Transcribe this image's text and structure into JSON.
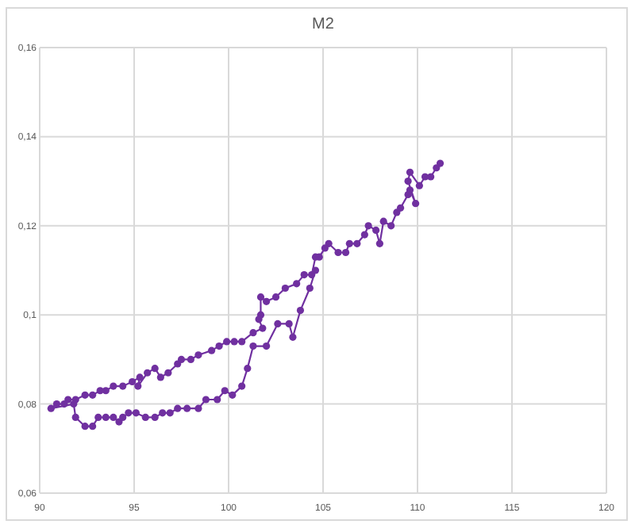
{
  "chart_data": {
    "type": "line",
    "title": "M2",
    "marker": "circle",
    "line_style": "solid",
    "grid": true,
    "xlim": [
      90,
      120
    ],
    "xticks": [
      90,
      95,
      100,
      105,
      110,
      115,
      120
    ],
    "ylim": [
      0.06,
      0.16
    ],
    "yticks": [
      {
        "value": 0.06,
        "label": "0,06"
      },
      {
        "value": 0.08,
        "label": "0,08"
      },
      {
        "value": 0.1,
        "label": "0,1"
      },
      {
        "value": 0.12,
        "label": "0,12"
      },
      {
        "value": 0.14,
        "label": "0,14"
      },
      {
        "value": 0.16,
        "label": "0,16"
      }
    ],
    "series": [
      {
        "color": "#7030a0",
        "x": [
          111.2,
          111.0,
          110.7,
          110.4,
          110.1,
          109.6,
          109.5,
          109.9,
          109.6,
          109.5,
          109.1,
          108.9,
          108.6,
          108.2,
          108.0,
          107.8,
          107.4,
          107.2,
          106.8,
          106.4,
          106.2,
          105.8,
          105.3,
          105.1,
          104.8,
          104.6,
          104.4,
          104.0,
          103.6,
          103.0,
          102.5,
          102.0,
          101.7,
          101.7,
          101.6,
          101.8,
          101.3,
          100.7,
          100.3,
          99.9,
          99.5,
          99.1,
          98.4,
          98.0,
          97.5,
          97.3,
          96.8,
          96.4,
          96.1,
          95.7,
          95.2,
          95.3,
          94.9,
          94.4,
          93.9,
          93.5,
          93.2,
          92.8,
          92.4,
          91.9,
          91.5,
          91.3,
          90.9,
          90.6,
          91.8,
          91.9,
          92.4,
          92.8,
          93.1,
          93.5,
          93.9,
          94.2,
          94.4,
          94.7,
          95.1,
          95.6,
          96.1,
          96.5,
          96.9,
          97.3,
          97.8,
          98.4,
          98.8,
          99.4,
          99.8,
          100.2,
          100.7,
          101.0,
          101.3,
          102.0,
          102.6,
          103.2,
          103.4,
          103.8,
          104.3,
          104.6
        ],
        "values": [
          0.134,
          0.133,
          0.131,
          0.131,
          0.129,
          0.132,
          0.13,
          0.125,
          0.128,
          0.127,
          0.124,
          0.123,
          0.12,
          0.121,
          0.116,
          0.119,
          0.12,
          0.118,
          0.116,
          0.116,
          0.114,
          0.114,
          0.116,
          0.115,
          0.113,
          0.113,
          0.109,
          0.109,
          0.107,
          0.106,
          0.104,
          0.103,
          0.104,
          0.1,
          0.099,
          0.097,
          0.096,
          0.094,
          0.094,
          0.094,
          0.093,
          0.092,
          0.091,
          0.09,
          0.09,
          0.089,
          0.087,
          0.086,
          0.088,
          0.087,
          0.084,
          0.086,
          0.085,
          0.084,
          0.084,
          0.083,
          0.083,
          0.082,
          0.082,
          0.081,
          0.081,
          0.08,
          0.08,
          0.079,
          0.08,
          0.077,
          0.075,
          0.075,
          0.077,
          0.077,
          0.077,
          0.076,
          0.077,
          0.078,
          0.078,
          0.077,
          0.077,
          0.078,
          0.078,
          0.079,
          0.079,
          0.079,
          0.081,
          0.081,
          0.083,
          0.082,
          0.084,
          0.088,
          0.093,
          0.093,
          0.098,
          0.098,
          0.095,
          0.101,
          0.106,
          0.11
        ]
      }
    ]
  }
}
